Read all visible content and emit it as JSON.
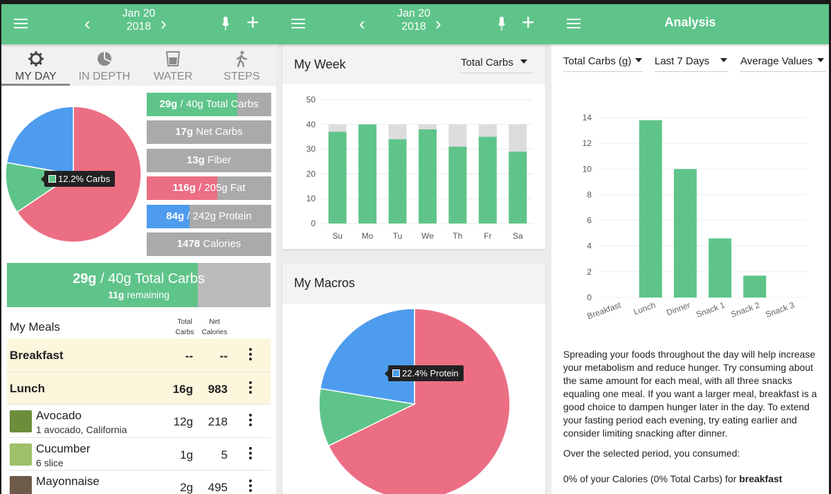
{
  "colors": {
    "green": "#5fc48a",
    "pink": "#ec6e84",
    "blue": "#4e9cee",
    "gray": "#aaaaaa",
    "light_gray": "#dcdcdc"
  },
  "screen1": {
    "header": {
      "date_line1": "Jan 20",
      "date_line2": "2018",
      "prev": "‹",
      "next": "›",
      "add": "+"
    },
    "tabs": [
      {
        "label": "MY DAY",
        "icon": "gear-icon"
      },
      {
        "label": "IN DEPTH",
        "icon": "pie-chart-icon"
      },
      {
        "label": "WATER",
        "icon": "water-glass-icon"
      },
      {
        "label": "STEPS",
        "icon": "walking-person-icon"
      }
    ],
    "pie_tooltip": "12.2% Carbs",
    "pie_slices": [
      {
        "name": "Fat",
        "pct": 65.6,
        "color": "#ec6e84"
      },
      {
        "name": "Carbs",
        "pct": 12.2,
        "color": "#5fc48a"
      },
      {
        "name": "Protein",
        "pct": 22.2,
        "color": "#4e9cee"
      }
    ],
    "progress": [
      {
        "bold": "29g",
        "rest": " / 40g Total Carbs",
        "fill": 0.725,
        "color": "#5fc48a"
      },
      {
        "bold": "17g",
        "rest": " Net Carbs",
        "fill": 0,
        "color": "#5fc48a"
      },
      {
        "bold": "13g",
        "rest": " Fiber",
        "fill": 0,
        "color": "#5fc48a"
      },
      {
        "bold": "116g",
        "rest": " / 205g Fat",
        "fill": 0.566,
        "color": "#ec6e84"
      },
      {
        "bold": "84g",
        "rest": " / 242g Protein",
        "fill": 0.347,
        "color": "#4e9cee"
      },
      {
        "bold": "1478",
        "rest": " Calories",
        "fill": 0,
        "color": "#5fc48a"
      }
    ],
    "big_bar": {
      "bold": "29g",
      "rest": " / 40g Total Carbs",
      "remaining_bold": "11g",
      "remaining_rest": " remaining",
      "fill": 0.725
    },
    "meals": {
      "title": "My Meals",
      "col1": [
        "Total",
        "Carbs"
      ],
      "col2": [
        "Net",
        "Calories"
      ],
      "rows": [
        {
          "type": "section",
          "name": "Breakfast",
          "v1": "--",
          "v2": "--"
        },
        {
          "type": "section",
          "name": "Lunch",
          "v1": "16g",
          "v2": "983"
        },
        {
          "type": "food",
          "name": "Avocado",
          "sub": "1 avocado, California",
          "v1": "12g",
          "v2": "218",
          "thumb": "#6b8e3a"
        },
        {
          "type": "food",
          "name": "Cucumber",
          "sub": "6 slice",
          "v1": "1g",
          "v2": "5",
          "thumb": "#9fbf6a"
        },
        {
          "type": "food",
          "name": "Mayonnaise",
          "sub": "",
          "v1": "2g",
          "v2": "495",
          "thumb": "#6d5a48"
        }
      ]
    }
  },
  "screen2": {
    "header": {
      "date_line1": "Jan 20",
      "date_line2": "2018",
      "prev": "‹",
      "next": "›",
      "add": "+"
    },
    "week": {
      "title": "My Week",
      "dropdown": "Total Carbs",
      "chart_data": {
        "type": "bar",
        "categories": [
          "Su",
          "Mo",
          "Tu",
          "We",
          "Th",
          "Fr",
          "Sa"
        ],
        "series": [
          {
            "values": [
              37,
              40,
              34,
              38,
              31,
              35,
              29
            ]
          },
          {
            "values": [
              40,
              40,
              40,
              40,
              40,
              40,
              40
            ]
          }
        ],
        "ylim": [
          0,
          50
        ],
        "yticks": [
          0,
          10,
          20,
          30,
          40,
          50
        ]
      }
    },
    "macros": {
      "title": "My Macros",
      "tooltip": "22.4% Protein",
      "slices": [
        {
          "name": "Fat",
          "pct": 67.8,
          "color": "#ec6e84"
        },
        {
          "name": "Carbs",
          "pct": 9.8,
          "color": "#5fc48a"
        },
        {
          "name": "Protein",
          "pct": 22.4,
          "color": "#4e9cee"
        }
      ]
    }
  },
  "screen3": {
    "header": {
      "title": "Analysis"
    },
    "filters": {
      "nutrient": "Total Carbs (g)",
      "period": "Last 7 Days",
      "mode": "Average Values"
    },
    "chart_data": {
      "type": "bar",
      "categories": [
        "Breakfast",
        "Lunch",
        "Dinner",
        "Snack 1",
        "Snack 2",
        "Snack 3"
      ],
      "values": [
        0,
        13.8,
        10,
        4.6,
        1.7,
        0
      ],
      "ylim": [
        0,
        14
      ],
      "yticks": [
        0,
        2,
        4,
        6,
        8,
        10,
        12,
        14
      ]
    },
    "paragraph": "Spreading your foods throughout the day will help increase your metabolism and reduce hunger. Try consuming about the same amount for each meal, with all three snacks equaling one meal. If you want a larger meal, breakfast is a good choice to dampen hunger later in the day. To extend your fasting period each evening, try eating earlier and consider limiting snacking after dinner.",
    "period_line": "Over the selected period, you consumed:",
    "consumed_line": {
      "text": "0% of your Calories (0% Total Carbs) for ",
      "bold": "breakfast"
    }
  }
}
